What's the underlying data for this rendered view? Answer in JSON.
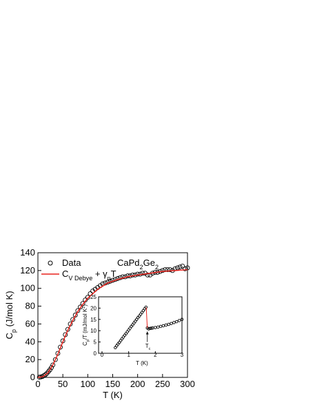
{
  "chart_data": [
    {
      "type": "scatter",
      "x_label": [
        {
          "t": "T (K)"
        }
      ],
      "y_label": [
        {
          "t": "C"
        },
        {
          "t": "p",
          "sub": true
        },
        {
          "t": " (J/mol K)"
        }
      ],
      "annotation": [
        {
          "t": "CaPd"
        },
        {
          "t": "2",
          "sub": true
        },
        {
          "t": "Ge"
        },
        {
          "t": "2",
          "sub": true
        }
      ],
      "xlim": [
        0,
        300
      ],
      "xticks": [
        0,
        50,
        100,
        150,
        200,
        250,
        300
      ],
      "ylim": [
        0,
        140
      ],
      "yticks": [
        0,
        20,
        40,
        60,
        80,
        100,
        120,
        140
      ],
      "series": [
        {
          "name": [
            {
              "t": "Data"
            }
          ],
          "mode": "markers",
          "color": "#000000",
          "x": [
            3,
            6,
            9,
            12,
            15,
            18,
            21,
            24,
            27,
            30,
            35,
            40,
            45,
            50,
            55,
            60,
            65,
            70,
            75,
            80,
            85,
            90,
            95,
            100,
            105,
            110,
            115,
            120,
            125,
            130,
            135,
            140,
            145,
            150,
            155,
            160,
            165,
            170,
            175,
            180,
            185,
            190,
            195,
            200,
            205,
            210,
            215,
            220,
            225,
            230,
            235,
            240,
            245,
            250,
            255,
            260,
            265,
            270,
            275,
            280,
            285,
            290,
            295,
            300
          ],
          "values": [
            0.2,
            0.5,
            1,
            2,
            3,
            4.5,
            6.5,
            8.5,
            11,
            14,
            20,
            27,
            34,
            41,
            48,
            54,
            60,
            65,
            70,
            75,
            79,
            83,
            87,
            90,
            94,
            97,
            99,
            101,
            103,
            105,
            106,
            107,
            108,
            109,
            110,
            111,
            112,
            113,
            113,
            114,
            114,
            115,
            115,
            116,
            116,
            117,
            117,
            115,
            115,
            117,
            118,
            118,
            119,
            120,
            121,
            121,
            121,
            120,
            122,
            123,
            124,
            125,
            122,
            123
          ]
        },
        {
          "name": [
            {
              "t": "C"
            },
            {
              "t": "V Debye",
              "sub": true
            },
            {
              "t": " + γ"
            },
            {
              "t": "n",
              "sub": true
            },
            {
              "t": "T"
            }
          ],
          "mode": "line",
          "color": "#e8221c",
          "x": [
            0,
            10,
            20,
            30,
            40,
            50,
            60,
            70,
            80,
            90,
            100,
            120,
            140,
            160,
            180,
            200,
            225,
            250,
            275,
            300
          ],
          "values": [
            0,
            0.8,
            5,
            14,
            26,
            40,
            53,
            64,
            74,
            82,
            89,
            99,
            106,
            110,
            113,
            115,
            117,
            119,
            120,
            121
          ]
        }
      ]
    },
    {
      "type": "scatter",
      "x_label": [
        {
          "t": "T (K)"
        }
      ],
      "y_label": [
        {
          "t": "C"
        },
        {
          "t": "p",
          "sub": true
        },
        {
          "t": "/T (mJ/mol K"
        },
        {
          "t": "2",
          "sup": true
        },
        {
          "t": ")"
        }
      ],
      "annotation": [
        {
          "t": "T"
        },
        {
          "t": "c",
          "sub": true
        }
      ],
      "xlim": [
        0,
        3
      ],
      "xticks": [
        0,
        1,
        2,
        3
      ],
      "ylim": [
        0,
        25
      ],
      "yticks": [
        0,
        5,
        10,
        15,
        20,
        25
      ],
      "series": [
        {
          "mode": "markers",
          "color": "#000000",
          "x": [
            0.5,
            0.55,
            0.6,
            0.65,
            0.7,
            0.75,
            0.8,
            0.85,
            0.9,
            0.95,
            1.0,
            1.05,
            1.1,
            1.15,
            1.2,
            1.25,
            1.3,
            1.35,
            1.4,
            1.45,
            1.5,
            1.55,
            1.6,
            1.65,
            1.7,
            1.75,
            1.8,
            1.85,
            1.9,
            2.0,
            2.1,
            2.2,
            2.3,
            2.4,
            2.5,
            2.6,
            2.7,
            2.8,
            2.9,
            3.0
          ],
          "values": [
            2.5,
            3.3,
            4.1,
            4.8,
            5.6,
            6.4,
            7.2,
            8.0,
            8.7,
            9.5,
            10.3,
            11.1,
            11.9,
            12.6,
            13.4,
            14.2,
            15.0,
            15.8,
            16.5,
            17.3,
            18.1,
            18.9,
            19.7,
            20.4,
            11.2,
            10.8,
            11.0,
            11.1,
            11.2,
            11.4,
            11.6,
            11.9,
            12.2,
            12.5,
            12.8,
            13.2,
            13.6,
            14.0,
            14.5,
            15.0
          ]
        },
        {
          "mode": "line",
          "color": "#e8221c",
          "x": [
            1.66,
            1.68,
            1.7
          ],
          "values": [
            20.3,
            15.5,
            11.2
          ]
        }
      ]
    }
  ]
}
